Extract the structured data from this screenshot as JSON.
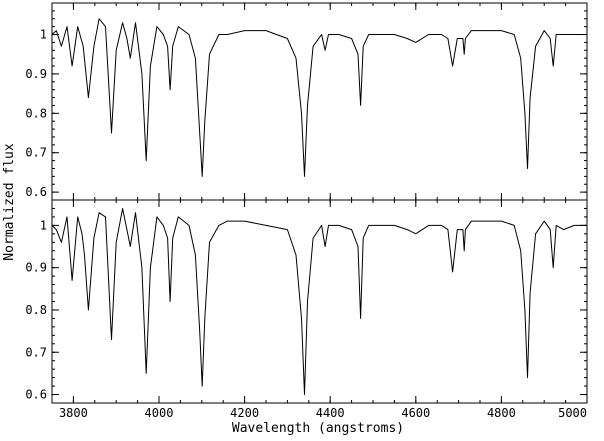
{
  "chart_data": [
    {
      "type": "line",
      "panel": "top",
      "title": "",
      "xlabel": "",
      "ylabel": "Normalized flux",
      "xlim": [
        3750,
        5000
      ],
      "ylim": [
        0.58,
        1.08
      ],
      "xticks": [
        3800,
        4000,
        4200,
        4400,
        4600,
        4800,
        5000
      ],
      "xtick_labels_shown": false,
      "yticks": [
        0.6,
        0.7,
        0.8,
        0.9,
        1.0
      ],
      "ytick_labels": [
        "0.6",
        "0.7",
        "0.8",
        "0.9",
        "1"
      ],
      "grid": false,
      "legend": "none",
      "line_color": "#000000",
      "series": [
        {
          "x": [
            3750,
            3760,
            3772,
            3785,
            3797,
            3810,
            3823,
            3835,
            3848,
            3860,
            3875,
            3889,
            3900,
            3915,
            3925,
            3933,
            3945,
            3960,
            3970,
            3980,
            3995,
            4010,
            4020,
            4026,
            4032,
            4045,
            4070,
            4085,
            4095,
            4101,
            4107,
            4118,
            4140,
            4160,
            4200,
            4250,
            4300,
            4320,
            4333,
            4340,
            4347,
            4360,
            4380,
            4388,
            4396,
            4420,
            4450,
            4465,
            4471,
            4477,
            4490,
            4520,
            4550,
            4580,
            4600,
            4630,
            4660,
            4675,
            4686,
            4697,
            4710,
            4713,
            4716,
            4730,
            4760,
            4800,
            4830,
            4845,
            4855,
            4861,
            4867,
            4880,
            4900,
            4914,
            4921,
            4928,
            4945,
            4970,
            5000
          ],
          "y": [
            1.0,
            1.01,
            0.97,
            1.02,
            0.92,
            1.02,
            0.97,
            0.84,
            0.97,
            1.04,
            1.02,
            0.75,
            0.96,
            1.03,
            0.99,
            0.94,
            1.03,
            0.9,
            0.68,
            0.92,
            1.02,
            1.0,
            0.97,
            0.86,
            0.97,
            1.02,
            1.0,
            0.94,
            0.75,
            0.64,
            0.78,
            0.95,
            1.0,
            1.0,
            1.01,
            1.01,
            0.99,
            0.94,
            0.8,
            0.64,
            0.82,
            0.97,
            1.0,
            0.96,
            1.0,
            1.0,
            0.99,
            0.95,
            0.82,
            0.97,
            1.0,
            1.0,
            1.0,
            0.99,
            0.98,
            1.0,
            1.0,
            0.99,
            0.92,
            0.99,
            0.99,
            0.95,
            0.99,
            1.01,
            1.01,
            1.01,
            1.0,
            0.94,
            0.8,
            0.66,
            0.84,
            0.97,
            1.01,
            0.99,
            0.92,
            1.0,
            1.0,
            1.0,
            1.0
          ]
        }
      ]
    },
    {
      "type": "line",
      "panel": "bottom",
      "title": "",
      "xlabel": "Wavelength (angstroms)",
      "ylabel": "Normalized flux",
      "xlim": [
        3750,
        5000
      ],
      "ylim": [
        0.58,
        1.06
      ],
      "xticks": [
        3800,
        4000,
        4200,
        4400,
        4600,
        4800,
        5000
      ],
      "xtick_labels": [
        "3800",
        "4000",
        "4200",
        "4400",
        "4600",
        "4800",
        "5000"
      ],
      "yticks": [
        0.6,
        0.7,
        0.8,
        0.9,
        1.0
      ],
      "ytick_labels": [
        "0.6",
        "0.7",
        "0.8",
        "0.9",
        "1"
      ],
      "grid": false,
      "legend": "none",
      "line_color": "#000000",
      "series": [
        {
          "x": [
            3750,
            3760,
            3772,
            3785,
            3797,
            3810,
            3820,
            3826,
            3835,
            3848,
            3860,
            3875,
            3889,
            3900,
            3915,
            3925,
            3933,
            3945,
            3960,
            3970,
            3980,
            3995,
            4010,
            4020,
            4026,
            4032,
            4045,
            4070,
            4085,
            4095,
            4101,
            4107,
            4118,
            4140,
            4160,
            4200,
            4250,
            4300,
            4320,
            4333,
            4340,
            4347,
            4360,
            4380,
            4388,
            4396,
            4420,
            4450,
            4465,
            4471,
            4477,
            4490,
            4520,
            4550,
            4580,
            4600,
            4630,
            4660,
            4675,
            4686,
            4697,
            4710,
            4713,
            4716,
            4730,
            4760,
            4800,
            4830,
            4845,
            4855,
            4861,
            4867,
            4880,
            4900,
            4914,
            4921,
            4928,
            4945,
            4970,
            5000
          ],
          "y": [
            1.0,
            0.99,
            0.96,
            1.02,
            0.87,
            1.02,
            0.98,
            0.93,
            0.8,
            0.97,
            1.03,
            1.02,
            0.73,
            0.96,
            1.04,
            0.99,
            0.95,
            1.03,
            0.9,
            0.65,
            0.9,
            1.02,
            1.0,
            0.97,
            0.82,
            0.97,
            1.02,
            1.0,
            0.93,
            0.75,
            0.62,
            0.78,
            0.96,
            1.0,
            1.01,
            1.01,
            1.0,
            0.99,
            0.93,
            0.78,
            0.6,
            0.82,
            0.97,
            1.0,
            0.95,
            1.0,
            1.0,
            0.99,
            0.95,
            0.78,
            0.97,
            1.0,
            1.0,
            1.0,
            0.99,
            0.98,
            1.0,
            1.0,
            0.99,
            0.89,
            0.99,
            0.99,
            0.94,
            0.99,
            1.01,
            1.01,
            1.01,
            1.0,
            0.94,
            0.8,
            0.64,
            0.84,
            0.98,
            1.01,
            0.99,
            0.9,
            1.0,
            0.99,
            1.0,
            1.0
          ]
        }
      ]
    }
  ]
}
